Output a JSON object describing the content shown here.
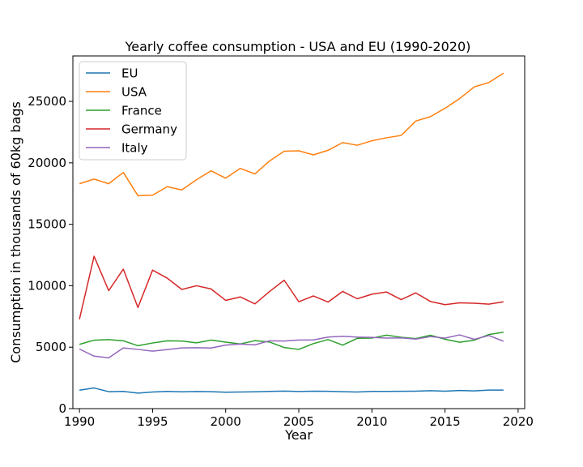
{
  "chart_data": {
    "type": "line",
    "title": "Yearly coffee consumption - USA and EU (1990-2020)",
    "xlabel": "Year",
    "ylabel": "Consumption in thousands of 60kg bags",
    "xlim": [
      1989.55,
      2020.45
    ],
    "ylim": [
      0,
      28700
    ],
    "xticks": [
      1990,
      1995,
      2000,
      2005,
      2010,
      2015,
      2020
    ],
    "yticks": [
      0,
      5000,
      10000,
      15000,
      20000,
      25000
    ],
    "grid": false,
    "legend_position": "upper-left",
    "x": [
      1990,
      1991,
      1992,
      1993,
      1994,
      1995,
      1996,
      1997,
      1998,
      1999,
      2000,
      2001,
      2002,
      2003,
      2004,
      2005,
      2006,
      2007,
      2008,
      2009,
      2010,
      2011,
      2012,
      2013,
      2014,
      2015,
      2016,
      2017,
      2018,
      2019
    ],
    "series": [
      {
        "name": "EU",
        "color": "#1f77b4",
        "values": [
          1500,
          1680,
          1380,
          1400,
          1260,
          1350,
          1400,
          1370,
          1390,
          1380,
          1340,
          1350,
          1370,
          1400,
          1430,
          1390,
          1420,
          1410,
          1380,
          1350,
          1400,
          1400,
          1410,
          1420,
          1460,
          1420,
          1480,
          1440,
          1510,
          1510
        ]
      },
      {
        "name": "USA",
        "color": "#ff7f0e",
        "values": [
          18300,
          18680,
          18300,
          19220,
          17330,
          17370,
          18060,
          17800,
          18620,
          19350,
          18750,
          19550,
          19100,
          20150,
          20950,
          20980,
          20650,
          21020,
          21650,
          21430,
          21800,
          22040,
          22230,
          23400,
          23760,
          24440,
          25230,
          26180,
          26540,
          27300
        ]
      },
      {
        "name": "France",
        "color": "#2ca02c",
        "values": [
          5230,
          5570,
          5620,
          5520,
          5120,
          5340,
          5520,
          5500,
          5350,
          5580,
          5410,
          5260,
          5530,
          5420,
          4970,
          4820,
          5290,
          5620,
          5170,
          5720,
          5740,
          5980,
          5810,
          5700,
          5970,
          5650,
          5400,
          5570,
          6030,
          6220
        ]
      },
      {
        "name": "Germany",
        "color": "#d62728",
        "values": [
          7280,
          12400,
          9600,
          11350,
          8230,
          11270,
          10620,
          9700,
          10000,
          9740,
          8810,
          9090,
          8520,
          9530,
          10450,
          8700,
          9170,
          8670,
          9540,
          8940,
          9310,
          9490,
          8870,
          9420,
          8720,
          8460,
          8610,
          8580,
          8500,
          8690
        ]
      },
      {
        "name": "Italy",
        "color": "#9467bd",
        "values": [
          4850,
          4270,
          4130,
          4940,
          4820,
          4680,
          4810,
          4940,
          4960,
          4930,
          5170,
          5250,
          5190,
          5520,
          5500,
          5580,
          5590,
          5820,
          5890,
          5820,
          5800,
          5740,
          5760,
          5660,
          5860,
          5740,
          6000,
          5640,
          5950,
          5480
        ]
      }
    ]
  }
}
